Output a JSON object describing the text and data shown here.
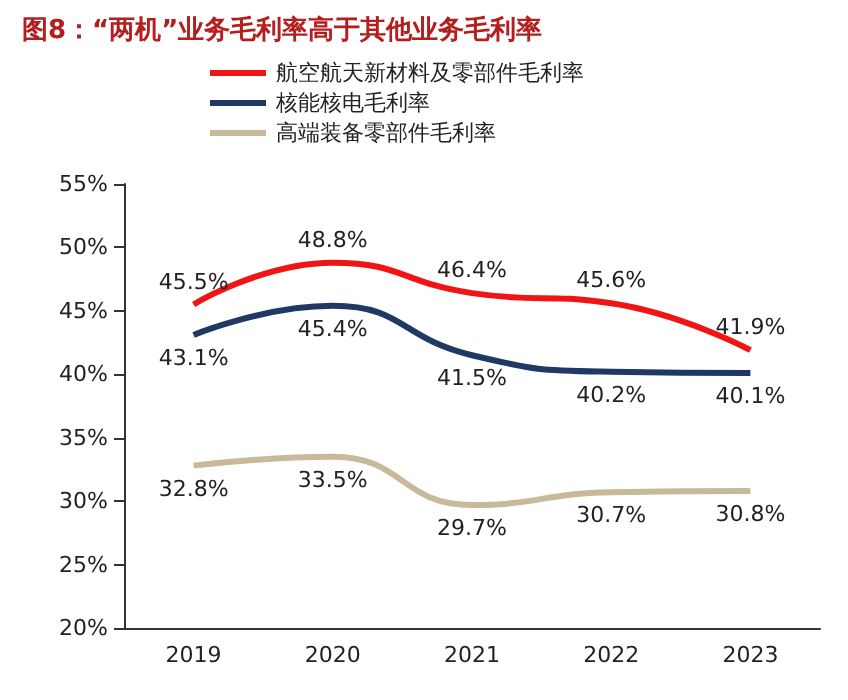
{
  "chart_data": {
    "type": "line",
    "title": "图8：“两机”业务毛利率高于其他业务毛利率",
    "categories": [
      "2019",
      "2020",
      "2021",
      "2022",
      "2023"
    ],
    "series": [
      {
        "name": "航空航天新材料及零部件毛利率",
        "color": "#f01414",
        "values": [
          45.5,
          48.8,
          46.4,
          45.6,
          41.9
        ],
        "value_labels": [
          "45.5%",
          "48.8%",
          "46.4%",
          "45.6%",
          "41.9%"
        ]
      },
      {
        "name": "核能核电毛利率",
        "color": "#1f3864",
        "values": [
          43.1,
          45.4,
          41.5,
          40.2,
          40.1
        ],
        "value_labels": [
          "43.1%",
          "45.4%",
          "41.5%",
          "40.2%",
          "40.1%"
        ]
      },
      {
        "name": "高端装备零部件毛利率",
        "color": "#c8b99a",
        "values": [
          32.8,
          33.5,
          29.7,
          30.7,
          30.8
        ],
        "value_labels": [
          "32.8%",
          "33.5%",
          "29.7%",
          "30.7%",
          "30.8%"
        ]
      }
    ],
    "ylim": [
      20,
      55
    ],
    "yticks": [
      {
        "value": 20,
        "label": "20%"
      },
      {
        "value": 25,
        "label": "25%"
      },
      {
        "value": 30,
        "label": "30%"
      },
      {
        "value": 35,
        "label": "35%"
      },
      {
        "value": 40,
        "label": "40%"
      },
      {
        "value": 45,
        "label": "45%"
      },
      {
        "value": 50,
        "label": "50%"
      },
      {
        "value": 55,
        "label": "55%"
      }
    ],
    "grid": false,
    "legend": "top",
    "marker": "none",
    "line_style": "solid"
  }
}
